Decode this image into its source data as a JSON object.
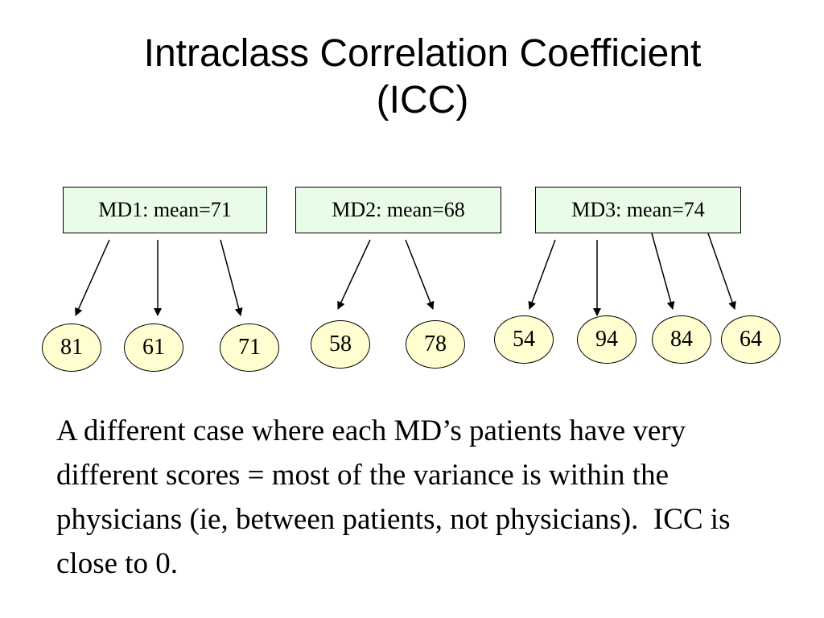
{
  "title": {
    "line1": "Intraclass Correlation Coefficient",
    "line2": "(ICC)"
  },
  "physicians": [
    {
      "label": "MD1: mean=71",
      "scores": [
        "81",
        "61",
        "71"
      ]
    },
    {
      "label": "MD2: mean=68",
      "scores": [
        "58",
        "78"
      ]
    },
    {
      "label": "MD3: mean=74",
      "scores": [
        "54",
        "94",
        "84",
        "64"
      ]
    }
  ],
  "colors": {
    "box_fill": "#e8fce8",
    "oval_fill": "#fffed0",
    "line": "#000000"
  },
  "caption": "A different case where each MD’s patients have very different scores = most of the variance is within the physicians (ie, between patients, not physicians).  ICC is close to 0."
}
